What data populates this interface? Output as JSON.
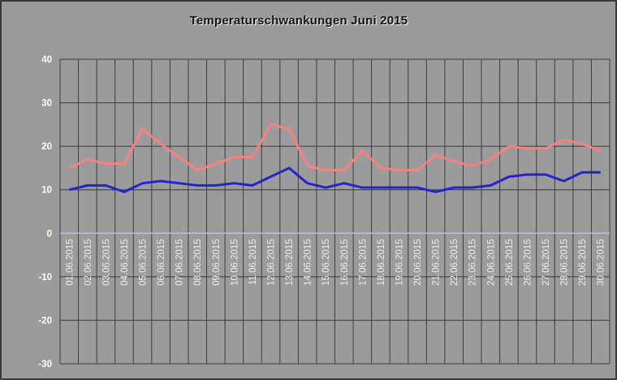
{
  "window": {
    "background_color": "#9B9B9B",
    "border_color": "#383838"
  },
  "chart_data": {
    "type": "line",
    "title": "Temperaturschwankungen Juni 2015",
    "xlabel": "",
    "ylabel": "",
    "ylim": [
      -30,
      40
    ],
    "yticks": [
      40,
      30,
      20,
      10,
      0,
      -10,
      -20,
      -30
    ],
    "ytick_step": 10,
    "grid": "both",
    "legend": "none",
    "gridline_color": "#3b3b3b",
    "zero_line_color": "#A9C9EA",
    "y_label_color": "#ffffff",
    "x_label_color": "#ededed",
    "x_labels_rotated_degrees": -90,
    "categories": [
      "01.06.2015",
      "02.06.2015",
      "03.06.2015",
      "04.06.2015",
      "05.06.2015",
      "06.06.2015",
      "07.06.2015",
      "08.06.2015",
      "09.06.2015",
      "10.06.2015",
      "11.06.2015",
      "12.06.2015",
      "13.06.2015",
      "14.06.2015",
      "15.06.2015",
      "16.06.2015",
      "17.06.2015",
      "18.06.2015",
      "19.06.2015",
      "20.06.2015",
      "21.06.2015",
      "22.06.2015",
      "23.06.2015",
      "24.06.2015",
      "25.06.2015",
      "26.06.2015",
      "27.06.2015",
      "28.06.2015",
      "29.06.2015",
      "30.06.2015"
    ],
    "series": [
      {
        "name": "rot",
        "color": "#F98080",
        "stroke_width": 3,
        "values": [
          15,
          17,
          16,
          16,
          24,
          20.5,
          17.5,
          14.5,
          16,
          17.5,
          17.5,
          25,
          24,
          15.5,
          14.5,
          14.5,
          19,
          15,
          14.5,
          14.5,
          18,
          16.5,
          15.5,
          17,
          20,
          19.5,
          19.5,
          21.5,
          20.5,
          19
        ]
      },
      {
        "name": "blau",
        "color": "#2424CB",
        "stroke_width": 3,
        "values": [
          10,
          11,
          11,
          9.5,
          11.5,
          12,
          11.5,
          11,
          11,
          11.5,
          11,
          13,
          15,
          11.5,
          10.5,
          11.5,
          10.5,
          10.5,
          10.5,
          10.5,
          9.5,
          10.5,
          10.5,
          11,
          13,
          13.5,
          13.5,
          12,
          14,
          14
        ]
      }
    ]
  }
}
